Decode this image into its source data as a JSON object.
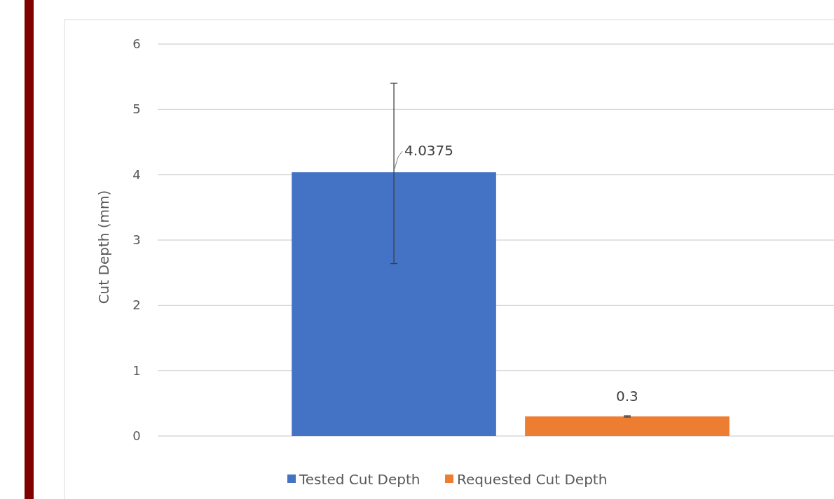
{
  "chart_data": {
    "type": "bar",
    "ylabel": "Cut Depth (mm)",
    "categories": [
      null
    ],
    "series": [
      {
        "name": "Tested Cut Depth",
        "color": "#4472c4",
        "values": [
          4.0375
        ],
        "errors": [
          [
            2.64,
            5.4
          ]
        ]
      },
      {
        "name": "Requested Cut Depth",
        "color": "#ed7d31",
        "values": [
          0.3
        ],
        "errors": [
          [
            0.29,
            0.31
          ]
        ]
      }
    ],
    "ylim": [
      0,
      6
    ],
    "yticks": [
      0,
      1,
      2,
      3,
      4,
      5,
      6
    ],
    "grid": "y",
    "legend": "bottom",
    "data_labels": true
  }
}
